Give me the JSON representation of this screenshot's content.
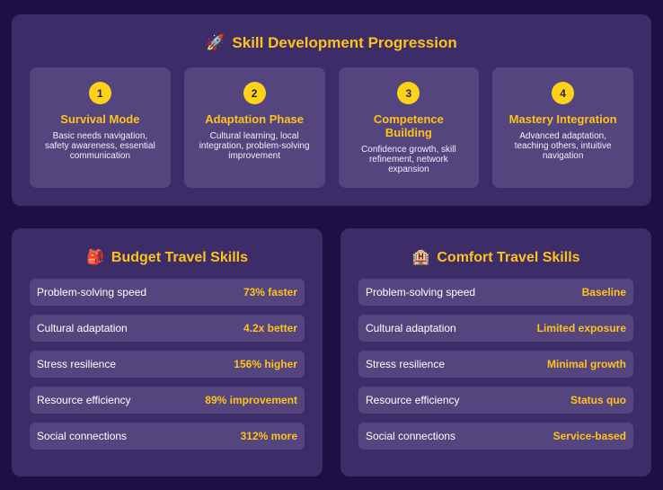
{
  "progression": {
    "icon": "rocket-icon",
    "title": "Skill Development Progression",
    "stages": [
      {
        "num": "1",
        "title": "Survival Mode",
        "desc": "Basic needs navigation, safety awareness, essential communication"
      },
      {
        "num": "2",
        "title": "Adaptation Phase",
        "desc": "Cultural learning, local integration, problem-solving improvement"
      },
      {
        "num": "3",
        "title": "Competence Building",
        "desc": "Confidence growth, skill refinement, network expansion"
      },
      {
        "num": "4",
        "title": "Mastery Integration",
        "desc": "Advanced adaptation, teaching others, intuitive navigation"
      }
    ]
  },
  "budget": {
    "icon": "backpack-icon",
    "title": "Budget Travel Skills",
    "rows": [
      {
        "label": "Problem-solving speed",
        "value": "73% faster"
      },
      {
        "label": "Cultural adaptation",
        "value": "4.2x better"
      },
      {
        "label": "Stress resilience",
        "value": "156% higher"
      },
      {
        "label": "Resource efficiency",
        "value": "89% improvement"
      },
      {
        "label": "Social connections",
        "value": "312% more"
      }
    ]
  },
  "comfort": {
    "icon": "hotel-icon",
    "title": "Comfort Travel Skills",
    "rows": [
      {
        "label": "Problem-solving speed",
        "value": "Baseline"
      },
      {
        "label": "Cultural adaptation",
        "value": "Limited exposure"
      },
      {
        "label": "Stress resilience",
        "value": "Minimal growth"
      },
      {
        "label": "Resource efficiency",
        "value": "Status quo"
      },
      {
        "label": "Social connections",
        "value": "Service-based"
      }
    ]
  },
  "colors": {
    "background": "#1e0f45",
    "panel": "#3c2d69",
    "item": "#55457e",
    "accent": "#ffc21a"
  }
}
